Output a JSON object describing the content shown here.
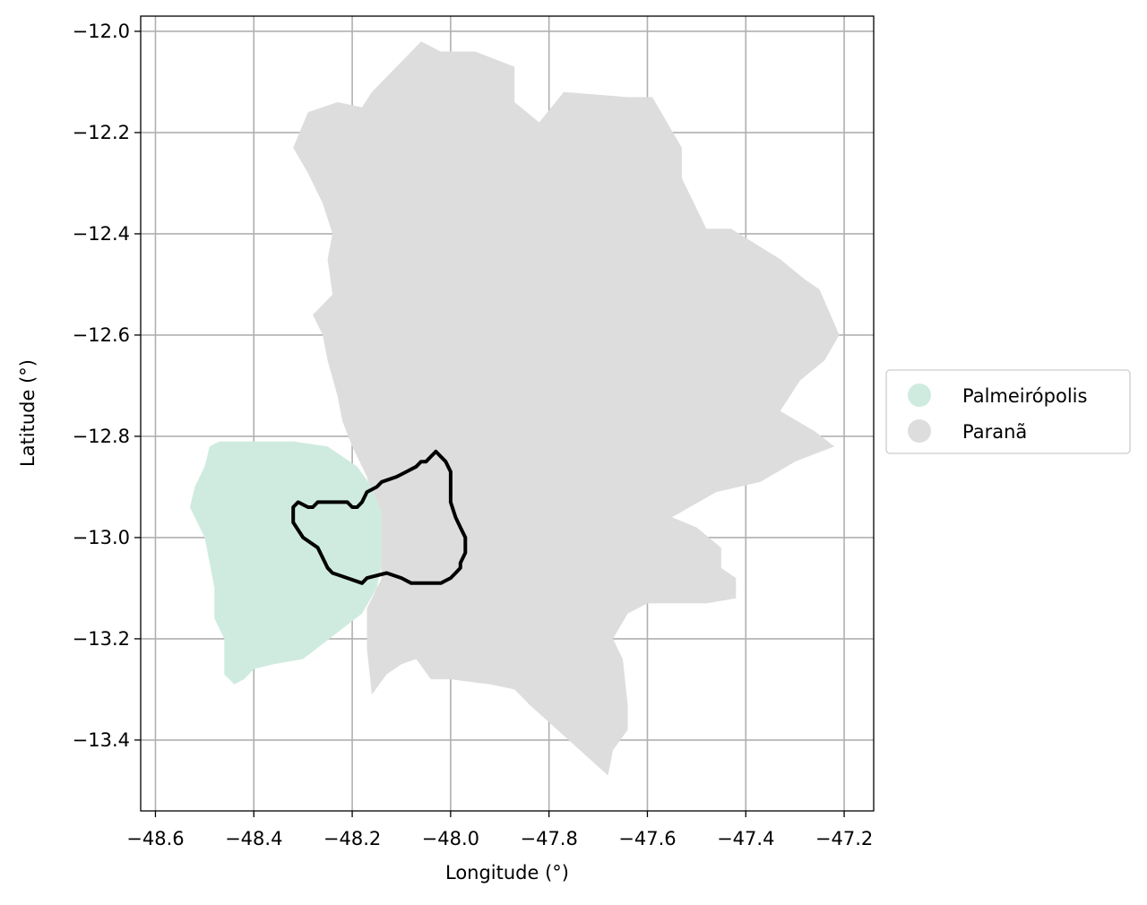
{
  "map": {
    "xlabel": "Longitude (°)",
    "ylabel": "Latitude (°)",
    "xlim": [
      -48.63,
      -47.14
    ],
    "ylim": [
      -13.54,
      -11.97
    ],
    "grid": true,
    "x_ticks": [
      {
        "value": -48.6,
        "label": "−48.6"
      },
      {
        "value": -48.4,
        "label": "−48.4"
      },
      {
        "value": -48.2,
        "label": "−48.2"
      },
      {
        "value": -48.0,
        "label": "−48.0"
      },
      {
        "value": -47.8,
        "label": "−47.8"
      },
      {
        "value": -47.6,
        "label": "−47.6"
      },
      {
        "value": -47.4,
        "label": "−47.4"
      },
      {
        "value": -47.2,
        "label": "−47.2"
      }
    ],
    "y_ticks": [
      {
        "value": -12.0,
        "label": "−12.0"
      },
      {
        "value": -12.2,
        "label": "−12.2"
      },
      {
        "value": -12.4,
        "label": "−12.4"
      },
      {
        "value": -12.6,
        "label": "−12.6"
      },
      {
        "value": -12.8,
        "label": "−12.8"
      },
      {
        "value": -13.0,
        "label": "−13.0"
      },
      {
        "value": -13.2,
        "label": "−13.2"
      },
      {
        "value": -13.4,
        "label": "−13.4"
      }
    ],
    "legend_position": "right-center",
    "legend": [
      {
        "label": "Palmeirópolis",
        "color": "#cfebdf"
      },
      {
        "label": "Paranã",
        "color": "#dddddd"
      }
    ],
    "regions": [
      {
        "name": "Paranã",
        "color": "#dddddd",
        "coords": [
          [
            -47.95,
            -12.04
          ],
          [
            -47.87,
            -12.07
          ],
          [
            -47.87,
            -12.14
          ],
          [
            -47.82,
            -12.18
          ],
          [
            -47.77,
            -12.12
          ],
          [
            -47.64,
            -12.13
          ],
          [
            -47.59,
            -12.13
          ],
          [
            -47.56,
            -12.18
          ],
          [
            -47.53,
            -12.23
          ],
          [
            -47.53,
            -12.29
          ],
          [
            -47.48,
            -12.39
          ],
          [
            -47.43,
            -12.39
          ],
          [
            -47.33,
            -12.45
          ],
          [
            -47.28,
            -12.49
          ],
          [
            -47.25,
            -12.51
          ],
          [
            -47.21,
            -12.6
          ],
          [
            -47.24,
            -12.65
          ],
          [
            -47.29,
            -12.69
          ],
          [
            -47.33,
            -12.75
          ],
          [
            -47.26,
            -12.79
          ],
          [
            -47.22,
            -12.82
          ],
          [
            -47.3,
            -12.85
          ],
          [
            -47.37,
            -12.89
          ],
          [
            -47.46,
            -12.91
          ],
          [
            -47.55,
            -12.96
          ],
          [
            -47.5,
            -12.98
          ],
          [
            -47.45,
            -13.02
          ],
          [
            -47.45,
            -13.06
          ],
          [
            -47.42,
            -13.08
          ],
          [
            -47.42,
            -13.12
          ],
          [
            -47.48,
            -13.13
          ],
          [
            -47.57,
            -13.13
          ],
          [
            -47.6,
            -13.13
          ],
          [
            -47.64,
            -13.15
          ],
          [
            -47.67,
            -13.2
          ],
          [
            -47.65,
            -13.24
          ],
          [
            -47.64,
            -13.33
          ],
          [
            -47.64,
            -13.38
          ],
          [
            -47.67,
            -13.42
          ],
          [
            -47.68,
            -13.47
          ],
          [
            -47.76,
            -13.4
          ],
          [
            -47.84,
            -13.33
          ],
          [
            -47.87,
            -13.3
          ],
          [
            -47.92,
            -13.29
          ],
          [
            -48.0,
            -13.28
          ],
          [
            -48.04,
            -13.28
          ],
          [
            -48.07,
            -13.24
          ],
          [
            -48.1,
            -13.25
          ],
          [
            -48.13,
            -13.27
          ],
          [
            -48.16,
            -13.31
          ],
          [
            -48.17,
            -13.22
          ],
          [
            -48.17,
            -13.14
          ],
          [
            -48.14,
            -13.08
          ],
          [
            -48.15,
            -12.95
          ],
          [
            -48.17,
            -12.88
          ],
          [
            -48.2,
            -12.82
          ],
          [
            -48.22,
            -12.77
          ],
          [
            -48.23,
            -12.72
          ],
          [
            -48.25,
            -12.65
          ],
          [
            -48.26,
            -12.6
          ],
          [
            -48.28,
            -12.56
          ],
          [
            -48.24,
            -12.52
          ],
          [
            -48.25,
            -12.45
          ],
          [
            -48.24,
            -12.4
          ],
          [
            -48.26,
            -12.34
          ],
          [
            -48.29,
            -12.28
          ],
          [
            -48.32,
            -12.23
          ],
          [
            -48.29,
            -12.16
          ],
          [
            -48.23,
            -12.14
          ],
          [
            -48.18,
            -12.15
          ],
          [
            -48.16,
            -12.12
          ],
          [
            -48.12,
            -12.08
          ],
          [
            -48.09,
            -12.05
          ],
          [
            -48.06,
            -12.02
          ],
          [
            -48.02,
            -12.04
          ]
        ]
      },
      {
        "name": "Palmeirópolis",
        "color": "#cfebdf",
        "coords": [
          [
            -48.47,
            -12.81
          ],
          [
            -48.4,
            -12.81
          ],
          [
            -48.32,
            -12.81
          ],
          [
            -48.25,
            -12.82
          ],
          [
            -48.19,
            -12.86
          ],
          [
            -48.16,
            -12.9
          ],
          [
            -48.14,
            -12.95
          ],
          [
            -48.14,
            -13.05
          ],
          [
            -48.15,
            -13.1
          ],
          [
            -48.18,
            -13.15
          ],
          [
            -48.22,
            -13.18
          ],
          [
            -48.26,
            -13.21
          ],
          [
            -48.3,
            -13.24
          ],
          [
            -48.36,
            -13.25
          ],
          [
            -48.4,
            -13.26
          ],
          [
            -48.42,
            -13.28
          ],
          [
            -48.44,
            -13.29
          ],
          [
            -48.46,
            -13.27
          ],
          [
            -48.46,
            -13.2
          ],
          [
            -48.48,
            -13.16
          ],
          [
            -48.48,
            -13.1
          ],
          [
            -48.49,
            -13.05
          ],
          [
            -48.5,
            -13.0
          ],
          [
            -48.52,
            -12.96
          ],
          [
            -48.53,
            -12.94
          ],
          [
            -48.52,
            -12.9
          ],
          [
            -48.5,
            -12.86
          ],
          [
            -48.49,
            -12.82
          ]
        ]
      }
    ],
    "outline": {
      "color": "#000000",
      "coords": [
        [
          -48.03,
          -12.83
        ],
        [
          -48.01,
          -12.85
        ],
        [
          -48.0,
          -12.87
        ],
        [
          -48.0,
          -12.93
        ],
        [
          -47.99,
          -12.96
        ],
        [
          -47.98,
          -12.98
        ],
        [
          -47.97,
          -13.0
        ],
        [
          -47.97,
          -13.03
        ],
        [
          -47.98,
          -13.05
        ],
        [
          -47.98,
          -13.06
        ],
        [
          -47.99,
          -13.07
        ],
        [
          -48.0,
          -13.08
        ],
        [
          -48.02,
          -13.09
        ],
        [
          -48.05,
          -13.09
        ],
        [
          -48.08,
          -13.09
        ],
        [
          -48.1,
          -13.08
        ],
        [
          -48.13,
          -13.07
        ],
        [
          -48.17,
          -13.08
        ],
        [
          -48.18,
          -13.09
        ],
        [
          -48.21,
          -13.08
        ],
        [
          -48.24,
          -13.07
        ],
        [
          -48.25,
          -13.06
        ],
        [
          -48.27,
          -13.02
        ],
        [
          -48.3,
          -13.0
        ],
        [
          -48.32,
          -12.97
        ],
        [
          -48.32,
          -12.94
        ],
        [
          -48.31,
          -12.93
        ],
        [
          -48.29,
          -12.94
        ],
        [
          -48.28,
          -12.94
        ],
        [
          -48.27,
          -12.93
        ],
        [
          -48.24,
          -12.93
        ],
        [
          -48.21,
          -12.93
        ],
        [
          -48.2,
          -12.94
        ],
        [
          -48.19,
          -12.94
        ],
        [
          -48.18,
          -12.93
        ],
        [
          -48.17,
          -12.91
        ],
        [
          -48.15,
          -12.9
        ],
        [
          -48.14,
          -12.89
        ],
        [
          -48.11,
          -12.88
        ],
        [
          -48.09,
          -12.87
        ],
        [
          -48.07,
          -12.86
        ],
        [
          -48.06,
          -12.85
        ],
        [
          -48.05,
          -12.85
        ],
        [
          -48.04,
          -12.84
        ]
      ]
    }
  }
}
